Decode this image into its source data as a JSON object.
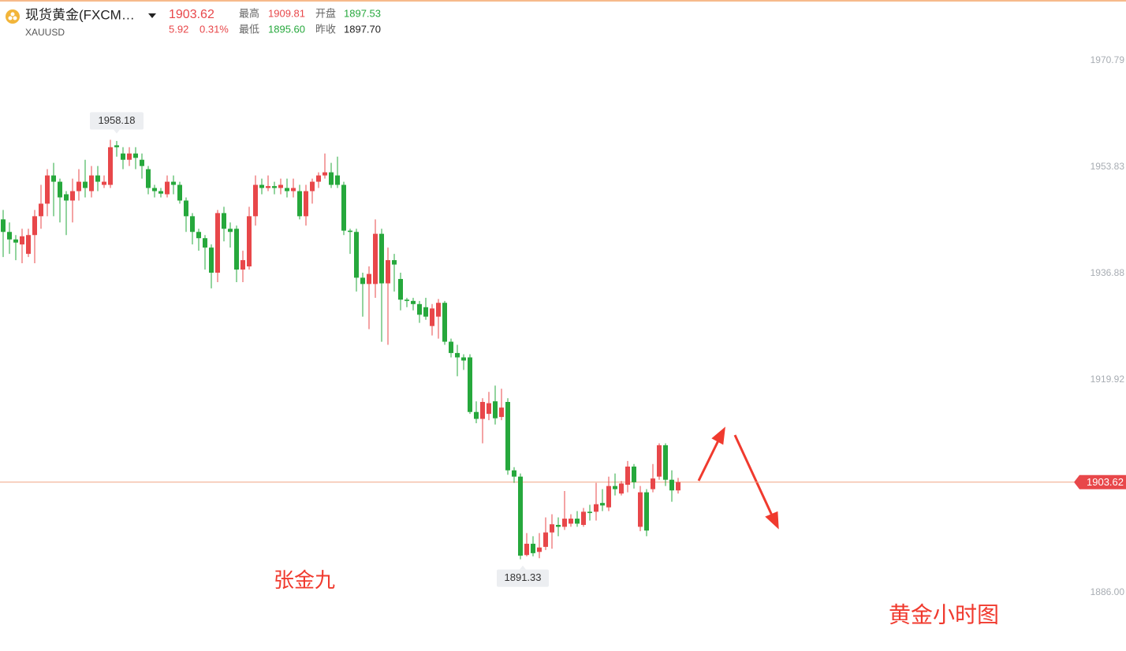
{
  "header": {
    "icon": "",
    "name": "现货黄金(FXCM…",
    "symbol": "XAUUSD",
    "price": "1903.62",
    "change": "5.92",
    "change_pct": "0.31%",
    "high_label": "最高",
    "high": "1909.81",
    "open_label": "开盘",
    "open": "1897.53",
    "low_label": "最低",
    "low": "1895.60",
    "prev_close_label": "昨收",
    "prev_close": "1897.70"
  },
  "chart_data": {
    "type": "candlestick",
    "up_color": "#e8474a",
    "down_color": "#26a83c",
    "price_line_color": "#f0a483",
    "ylim": [
      1886,
      1970.79
    ],
    "yticks": [
      {
        "value": 1886,
        "label": "1886.00"
      },
      1919.92,
      1936.88,
      1953.83,
      1970.79
    ],
    "max_label": 1958.18,
    "min_label": 1891.33,
    "last_price": 1903.62,
    "annotations": [
      "张金九",
      "黄金小时图"
    ],
    "open": [
      1945.5,
      1943.5,
      1942.3,
      1941.5,
      1940,
      1943,
      1946,
      1948,
      1952.5,
      1951.5,
      1949.5,
      1948.5,
      1950,
      1951.5,
      1950,
      1952.5,
      1951,
      1951,
      1957.3,
      1956,
      1955,
      1956,
      1955,
      1953.5,
      1950.5,
      1950,
      1949.5,
      1951.5,
      1951,
      1948.5,
      1946,
      1943.5,
      1942.5,
      1941,
      1937,
      1946.5,
      1944,
      1944,
      1937.5,
      1938,
      1946,
      1951,
      1950.5,
      1950.8,
      1950.5,
      1950.5,
      1950,
      1950,
      1946,
      1950,
      1951.5,
      1952.5,
      1953,
      1952.5,
      1951,
      1943.7,
      1943.5,
      1936.2,
      1935.2,
      1935.2,
      1943.2,
      1935.3,
      1939,
      1936,
      1932.7,
      1932.5,
      1932,
      1931.5,
      1928.5,
      1930,
      1932.2,
      1926,
      1924.2,
      1923.5,
      1923.5,
      1914.8,
      1913.7,
      1914.5,
      1916.5,
      1914,
      1916.4,
      1905.5,
      1904.5,
      1892,
      1893.8,
      1892.5,
      1893.3,
      1895.6,
      1896.8,
      1896.5,
      1897,
      1897.8,
      1896.8,
      1898.9,
      1898.9,
      1900.3,
      1899.6,
      1903,
      1901.8,
      1903.2,
      1906.1,
      1896.5,
      1902,
      1902.5,
      1904.5,
      1909.5,
      1904,
      1902.3
    ],
    "high": [
      1947,
      1945,
      1943,
      1944,
      1944,
      1947,
      1951,
      1953.5,
      1954.5,
      1952,
      1950,
      1952,
      1953.5,
      1955,
      1954,
      1954,
      1952.5,
      1958.18,
      1958,
      1957,
      1957,
      1957,
      1956,
      1954,
      1951,
      1950.5,
      1952.5,
      1952.5,
      1951.5,
      1949,
      1946.5,
      1944,
      1943,
      1941.5,
      1947,
      1947.5,
      1945,
      1944.5,
      1940.5,
      1947.5,
      1952.5,
      1952,
      1952.5,
      1951.5,
      1952,
      1952,
      1952,
      1951,
      1951,
      1952,
      1953,
      1956,
      1954.5,
      1955.5,
      1951.5,
      1944,
      1944,
      1937,
      1938,
      1945.5,
      1944,
      1941,
      1940,
      1937,
      1933,
      1933,
      1932.5,
      1933,
      1932,
      1932.8,
      1932.5,
      1926.5,
      1925.5,
      1924,
      1924,
      1916.5,
      1917,
      1918,
      1919,
      1918.5,
      1917,
      1906,
      1905,
      1895.5,
      1895,
      1895.5,
      1898,
      1898.5,
      1898,
      1902.2,
      1898.5,
      1899,
      1899.5,
      1900,
      1903.5,
      1902.5,
      1904.5,
      1905,
      1903.8,
      1907,
      1906.5,
      1903,
      1902.5,
      1906.5,
      1909.8,
      1909.8,
      1905.5,
      1904.3
    ],
    "low": [
      1939.5,
      1940,
      1939,
      1938.5,
      1939.5,
      1938.5,
      1944,
      1946,
      1946,
      1945,
      1943,
      1945,
      1948.5,
      1949,
      1949,
      1950,
      1950.5,
      1950.5,
      1955.5,
      1953.5,
      1954,
      1953.5,
      1952,
      1949.5,
      1949,
      1949,
      1949,
      1949.5,
      1948,
      1943.5,
      1941.5,
      1940.5,
      1937.5,
      1934.5,
      1935.5,
      1942,
      1941,
      1935.5,
      1935.5,
      1937.5,
      1944.5,
      1949.5,
      1950,
      1949.5,
      1949.5,
      1949,
      1949,
      1945.5,
      1944.5,
      1948,
      1950.5,
      1952,
      1950.5,
      1950.5,
      1943,
      1940,
      1934,
      1930,
      1928,
      1933,
      1926,
      1925.5,
      1934,
      1931,
      1931.5,
      1931,
      1929,
      1929.5,
      1927,
      1926.5,
      1925.5,
      1923.5,
      1920.5,
      1921.5,
      1914.5,
      1913,
      1909.8,
      1913.5,
      1912.8,
      1913.5,
      1904.8,
      1903.5,
      1891.33,
      1891.8,
      1891.8,
      1891.5,
      1892.8,
      1893,
      1895,
      1896,
      1896.5,
      1896.5,
      1896.5,
      1897.5,
      1897.5,
      1899,
      1899,
      1901.5,
      1901.5,
      1902,
      1902.6,
      1895.8,
      1895,
      1902,
      1904,
      1903,
      1900.5,
      1901.8
    ],
    "close": [
      1943.5,
      1942.3,
      1941.8,
      1942.8,
      1943,
      1946,
      1948,
      1952.5,
      1951.5,
      1949,
      1948.5,
      1950,
      1951.5,
      1950.5,
      1952.5,
      1951.5,
      1951.5,
      1957,
      1957,
      1955,
      1956,
      1955.3,
      1954,
      1950.5,
      1950,
      1949.6,
      1951.5,
      1951,
      1948.5,
      1946,
      1943.5,
      1942.5,
      1941,
      1937,
      1946.5,
      1944,
      1943.5,
      1937.5,
      1939,
      1946,
      1951,
      1950.5,
      1950.8,
      1950.5,
      1951,
      1950,
      1950.5,
      1946,
      1950,
      1951.5,
      1952.5,
      1953,
      1951,
      1951,
      1943.7,
      1943.5,
      1936.2,
      1935.2,
      1936.8,
      1943.2,
      1935.3,
      1939,
      1938.3,
      1932.7,
      1932.5,
      1932,
      1930.3,
      1930,
      1931.3,
      1932.2,
      1926,
      1924.2,
      1923.5,
      1923,
      1914.8,
      1913.7,
      1916.4,
      1916.2,
      1913.8,
      1915.5,
      1905.5,
      1904.5,
      1891.9,
      1893.8,
      1892.3,
      1893.2,
      1895.6,
      1896.9,
      1896.5,
      1897.8,
      1897.8,
      1897,
      1898.9,
      1898.7,
      1900.1,
      1899.9,
      1903,
      1902.5,
      1903.4,
      1906.1,
      1903.6,
      1902,
      1895.9,
      1904.2,
      1909.5,
      1904,
      1902.3,
      1903.62
    ]
  }
}
